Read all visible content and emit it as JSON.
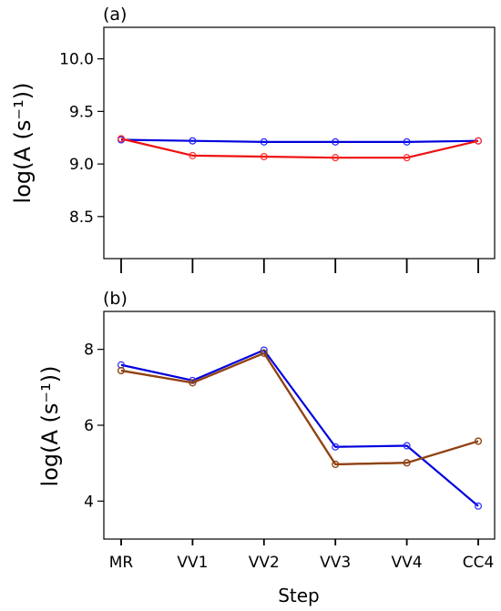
{
  "chart_data": [
    {
      "type": "line",
      "panel_label": "(a)",
      "ylabel": "log(A (s⁻¹))",
      "xlabel": "",
      "categories": [
        "MR",
        "VV1",
        "VV2",
        "VV3",
        "VV4",
        "CC4"
      ],
      "ylim": [
        8.1,
        10.3
      ],
      "yticks": [
        "10.0",
        "9.5",
        "9.0",
        "8.5"
      ],
      "ytick_values": [
        10.0,
        9.5,
        9.0,
        8.5
      ],
      "show_x_tick_labels": false,
      "grid": false,
      "series": [
        {
          "color": "#0000dd",
          "marker_color": "#1a1aff",
          "values": [
            9.23,
            9.22,
            9.21,
            9.21,
            9.21,
            9.22
          ]
        },
        {
          "color": "#ee1111",
          "marker_color": "#ff2a2a",
          "values": [
            9.24,
            9.08,
            9.07,
            9.06,
            9.06,
            9.22
          ]
        }
      ]
    },
    {
      "type": "line",
      "panel_label": "(b)",
      "ylabel": "log(A (s⁻¹))",
      "xlabel": "Step",
      "categories": [
        "MR",
        "VV1",
        "VV2",
        "VV3",
        "VV4",
        "CC4"
      ],
      "ylim": [
        3.0,
        9.0
      ],
      "yticks": [
        "8",
        "6",
        "4"
      ],
      "ytick_values": [
        8,
        6,
        4
      ],
      "show_x_tick_labels": true,
      "grid": false,
      "series": [
        {
          "color": "#0000dd",
          "marker_color": "#2a2aff",
          "values": [
            7.59,
            7.18,
            7.98,
            5.43,
            5.46,
            3.87
          ]
        },
        {
          "color": "#ee1111",
          "marker_color": "#a0521e",
          "values": [
            7.44,
            7.12,
            7.9,
            4.97,
            5.01,
            5.58
          ]
        },
        {
          "color": "#8b4513",
          "marker_color": "#8b4513",
          "values": [
            7.44,
            7.12,
            7.9,
            4.97,
            5.01,
            5.58
          ]
        }
      ]
    }
  ]
}
